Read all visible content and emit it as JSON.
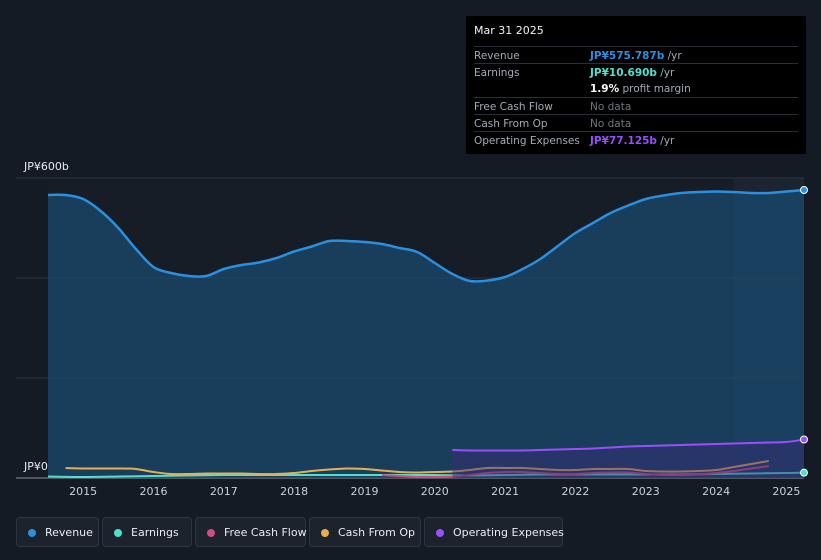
{
  "tooltip": {
    "date": "Mar 31 2025",
    "rows": [
      {
        "label": "Revenue",
        "value": "JP¥575.787b",
        "unit": "/yr",
        "color": "#2b8fe0"
      },
      {
        "label": "Earnings",
        "value": "JP¥10.690b",
        "unit": "/yr",
        "color": "#4fe0cf"
      },
      {
        "label": "",
        "value": "1.9%",
        "unit": "profit margin",
        "color": "#ffffff"
      },
      {
        "label": "Free Cash Flow",
        "value": "No data",
        "unit": "",
        "color": "#6d7680"
      },
      {
        "label": "Cash From Op",
        "value": "No data",
        "unit": "",
        "color": "#6d7680"
      },
      {
        "label": "Operating Expenses",
        "value": "JP¥77.125b",
        "unit": "/yr",
        "color": "#9b4dff"
      }
    ]
  },
  "legend": [
    {
      "label": "Revenue",
      "color": "#2b8fe0"
    },
    {
      "label": "Earnings",
      "color": "#4fe0cf"
    },
    {
      "label": "Free Cash Flow",
      "color": "#d04e84"
    },
    {
      "label": "Cash From Op",
      "color": "#e7b04f"
    },
    {
      "label": "Operating Expenses",
      "color": "#9b4dff"
    }
  ],
  "chart_data": {
    "type": "line",
    "ylabel_top": "JP¥600b",
    "ylabel_bottom": "JP¥0",
    "ylim": [
      0,
      600
    ],
    "xlim": [
      2014.5,
      2025.25
    ],
    "x_ticks": [
      "2015",
      "2016",
      "2017",
      "2018",
      "2019",
      "2020",
      "2021",
      "2022",
      "2023",
      "2024",
      "2025"
    ],
    "grid": true,
    "series": [
      {
        "name": "Revenue",
        "color": "#2b8fe0",
        "area": true,
        "x": [
          2014.5,
          2014.75,
          2015,
          2015.25,
          2015.5,
          2015.75,
          2016,
          2016.25,
          2016.5,
          2016.75,
          2017,
          2017.25,
          2017.5,
          2017.75,
          2018,
          2018.25,
          2018.5,
          2018.75,
          2019,
          2019.25,
          2019.5,
          2019.75,
          2020,
          2020.25,
          2020.5,
          2020.75,
          2021,
          2021.25,
          2021.5,
          2021.75,
          2022,
          2022.25,
          2022.5,
          2022.75,
          2023,
          2023.25,
          2023.5,
          2023.75,
          2024,
          2024.25,
          2024.5,
          2024.75,
          2025,
          2025.25
        ],
        "y": [
          566,
          566,
          558,
          534,
          500,
          458,
          422,
          410,
          404,
          404,
          418,
          426,
          431,
          440,
          453,
          463,
          474,
          474,
          472,
          468,
          460,
          452,
          430,
          408,
          394,
          395,
          402,
          418,
          438,
          464,
          490,
          510,
          530,
          545,
          558,
          565,
          570,
          572,
          573,
          572,
          570,
          570,
          573,
          576
        ]
      },
      {
        "name": "Earnings",
        "color": "#4fe0cf",
        "x": [
          2014.5,
          2015,
          2015.5,
          2016,
          2016.5,
          2017,
          2017.5,
          2018,
          2018.5,
          2019,
          2019.5,
          2020,
          2020.5,
          2021,
          2021.5,
          2022,
          2022.5,
          2023,
          2023.5,
          2024,
          2024.5,
          2025,
          2025.25
        ],
        "y": [
          3,
          2,
          3,
          4,
          5,
          6,
          6,
          6,
          6,
          6,
          6,
          6,
          5,
          6,
          7,
          7,
          7,
          7,
          7,
          8,
          9,
          10,
          10.7
        ]
      },
      {
        "name": "Free Cash Flow",
        "color": "#d04e84",
        "x": [
          2019.25,
          2019.5,
          2019.75,
          2020,
          2020.25,
          2020.5,
          2020.75,
          2021,
          2021.25,
          2021.5,
          2021.75,
          2022,
          2022.25,
          2022.5,
          2022.75,
          2023,
          2023.25,
          2023.5,
          2023.75,
          2024,
          2024.25,
          2024.5,
          2024.75
        ],
        "y": [
          6,
          4,
          2,
          2,
          3,
          6,
          10,
          12,
          12,
          10,
          8,
          8,
          10,
          11,
          11,
          8,
          6,
          6,
          7,
          10,
          14,
          19,
          24
        ]
      },
      {
        "name": "Cash From Op",
        "color": "#e7b04f",
        "x": [
          2014.75,
          2015,
          2015.5,
          2015.75,
          2016,
          2016.25,
          2016.5,
          2016.75,
          2017,
          2017.25,
          2017.5,
          2017.75,
          2018,
          2018.25,
          2018.5,
          2018.75,
          2019,
          2019.25,
          2019.5,
          2019.75,
          2020,
          2020.25,
          2020.5,
          2020.75,
          2021,
          2021.25,
          2021.5,
          2021.75,
          2022,
          2022.25,
          2022.5,
          2022.75,
          2023,
          2023.25,
          2023.5,
          2023.75,
          2024,
          2024.25,
          2024.5,
          2024.75
        ],
        "y": [
          20,
          19,
          19,
          18,
          12,
          8,
          8,
          9,
          9,
          9,
          8,
          8,
          10,
          14,
          17,
          19,
          18,
          15,
          12,
          11,
          12,
          13,
          16,
          20,
          20,
          20,
          18,
          16,
          16,
          18,
          18,
          18,
          14,
          13,
          13,
          14,
          16,
          22,
          28,
          34
        ]
      },
      {
        "name": "Operating Expenses",
        "color": "#9b4dff",
        "x": [
          2020.25,
          2020.5,
          2020.75,
          2021,
          2021.25,
          2021.5,
          2021.75,
          2022,
          2022.25,
          2022.5,
          2022.75,
          2023,
          2023.25,
          2023.5,
          2023.75,
          2024,
          2024.25,
          2024.5,
          2024.75,
          2025,
          2025.25
        ],
        "y": [
          56,
          55,
          55,
          55,
          55,
          56,
          57,
          58,
          59,
          61,
          63,
          64,
          65,
          66,
          67,
          68,
          69,
          70,
          71,
          72,
          77
        ]
      }
    ]
  }
}
